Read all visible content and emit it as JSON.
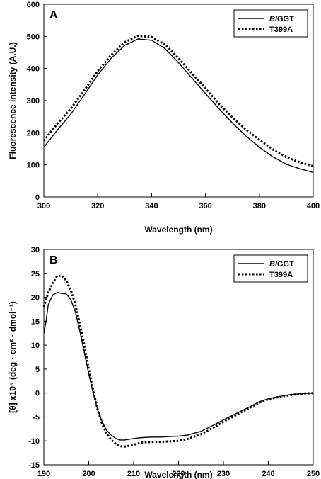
{
  "chart_data": [
    {
      "type": "line",
      "panel_label": "A",
      "xlabel": "Wavelength (nm)",
      "ylabel": "Fluorescence intensity (A.U.)",
      "xlim": [
        300,
        400
      ],
      "ylim": [
        0,
        600
      ],
      "xticks": [
        300,
        320,
        340,
        360,
        380,
        400
      ],
      "yticks": [
        0,
        100,
        200,
        300,
        400,
        500,
        600
      ],
      "legend_position": "top-right",
      "series": [
        {
          "name": "BlGGT",
          "name_italic_part": "Bl",
          "name_plain_part": "GGT",
          "style": "solid",
          "points": [
            [
              300,
              155
            ],
            [
              305,
              208
            ],
            [
              310,
              258
            ],
            [
              315,
              318
            ],
            [
              320,
              380
            ],
            [
              325,
              432
            ],
            [
              330,
              472
            ],
            [
              335,
              492
            ],
            [
              340,
              488
            ],
            [
              345,
              462
            ],
            [
              350,
              418
            ],
            [
              355,
              370
            ],
            [
              360,
              322
            ],
            [
              365,
              275
            ],
            [
              370,
              230
            ],
            [
              375,
              190
            ],
            [
              380,
              155
            ],
            [
              385,
              125
            ],
            [
              390,
              102
            ],
            [
              395,
              88
            ],
            [
              400,
              76
            ]
          ]
        },
        {
          "name": "T399A",
          "style": "dotted",
          "points": [
            [
              300,
              175
            ],
            [
              305,
              228
            ],
            [
              310,
              275
            ],
            [
              315,
              332
            ],
            [
              320,
              392
            ],
            [
              325,
              442
            ],
            [
              330,
              482
            ],
            [
              335,
              502
            ],
            [
              340,
              498
            ],
            [
              345,
              475
            ],
            [
              350,
              432
            ],
            [
              355,
              385
            ],
            [
              360,
              338
            ],
            [
              365,
              290
            ],
            [
              370,
              248
            ],
            [
              375,
              210
            ],
            [
              380,
              178
            ],
            [
              385,
              148
            ],
            [
              390,
              124
            ],
            [
              395,
              108
            ],
            [
              400,
              96
            ]
          ]
        }
      ]
    },
    {
      "type": "line",
      "panel_label": "B",
      "xlabel": "Wavelength (nm)",
      "ylabel": "[θ] x10⁶ (deg · cm² · dmol⁻¹)",
      "xlim": [
        190,
        250
      ],
      "ylim": [
        -15,
        30
      ],
      "xticks": [
        190,
        200,
        210,
        220,
        230,
        240,
        250
      ],
      "yticks": [
        -15,
        -10,
        -5,
        0,
        5,
        10,
        15,
        20,
        25,
        30
      ],
      "legend_position": "top-right",
      "series": [
        {
          "name": "BlGGT",
          "name_italic_part": "Bl",
          "name_plain_part": "GGT",
          "style": "solid",
          "points": [
            [
              190,
              12.5
            ],
            [
              190.5,
              15
            ],
            [
              191,
              18.5
            ],
            [
              192,
              20.5
            ],
            [
              193,
              21
            ],
            [
              194,
              20.8
            ],
            [
              195,
              20.7
            ],
            [
              196,
              19.5
            ],
            [
              197,
              17
            ],
            [
              198,
              13
            ],
            [
              199,
              8.5
            ],
            [
              200,
              4
            ],
            [
              201,
              0
            ],
            [
              202,
              -3.5
            ],
            [
              203,
              -6
            ],
            [
              204,
              -7.8
            ],
            [
              205,
              -8.8
            ],
            [
              206,
              -9.5
            ],
            [
              207,
              -9.8
            ],
            [
              208,
              -9.8
            ],
            [
              210,
              -9.5
            ],
            [
              212,
              -9.3
            ],
            [
              214,
              -9.2
            ],
            [
              216,
              -9.2
            ],
            [
              218,
              -9.1
            ],
            [
              220,
              -9
            ],
            [
              222,
              -8.8
            ],
            [
              225,
              -8
            ],
            [
              228,
              -6.6
            ],
            [
              230,
              -5.6
            ],
            [
              233,
              -4.2
            ],
            [
              236,
              -2.8
            ],
            [
              238,
              -1.8
            ],
            [
              240,
              -1.2
            ],
            [
              242,
              -0.8
            ],
            [
              245,
              -0.3
            ],
            [
              248,
              -0.1
            ],
            [
              250,
              0
            ]
          ]
        },
        {
          "name": "T399A",
          "style": "dotted",
          "points": [
            [
              190,
              18
            ],
            [
              191,
              21
            ],
            [
              192,
              23
            ],
            [
              193,
              24.5
            ],
            [
              194,
              24.5
            ],
            [
              195,
              23.5
            ],
            [
              196,
              21.5
            ],
            [
              197,
              18.5
            ],
            [
              198,
              14.5
            ],
            [
              199,
              10
            ],
            [
              200,
              5
            ],
            [
              201,
              0.5
            ],
            [
              202,
              -3.5
            ],
            [
              203,
              -6.5
            ],
            [
              204,
              -8.5
            ],
            [
              205,
              -9.8
            ],
            [
              206,
              -10.6
            ],
            [
              207,
              -11.1
            ],
            [
              208,
              -11.2
            ],
            [
              210,
              -10.8
            ],
            [
              212,
              -10.3
            ],
            [
              214,
              -10.2
            ],
            [
              216,
              -10.2
            ],
            [
              218,
              -10.1
            ],
            [
              220,
              -10
            ],
            [
              222,
              -9.6
            ],
            [
              225,
              -8.6
            ],
            [
              228,
              -7.1
            ],
            [
              230,
              -6
            ],
            [
              233,
              -4.5
            ],
            [
              236,
              -3
            ],
            [
              238,
              -2
            ],
            [
              240,
              -1.3
            ],
            [
              242,
              -0.9
            ],
            [
              245,
              -0.4
            ],
            [
              248,
              -0.1
            ],
            [
              250,
              0
            ]
          ]
        }
      ]
    }
  ]
}
